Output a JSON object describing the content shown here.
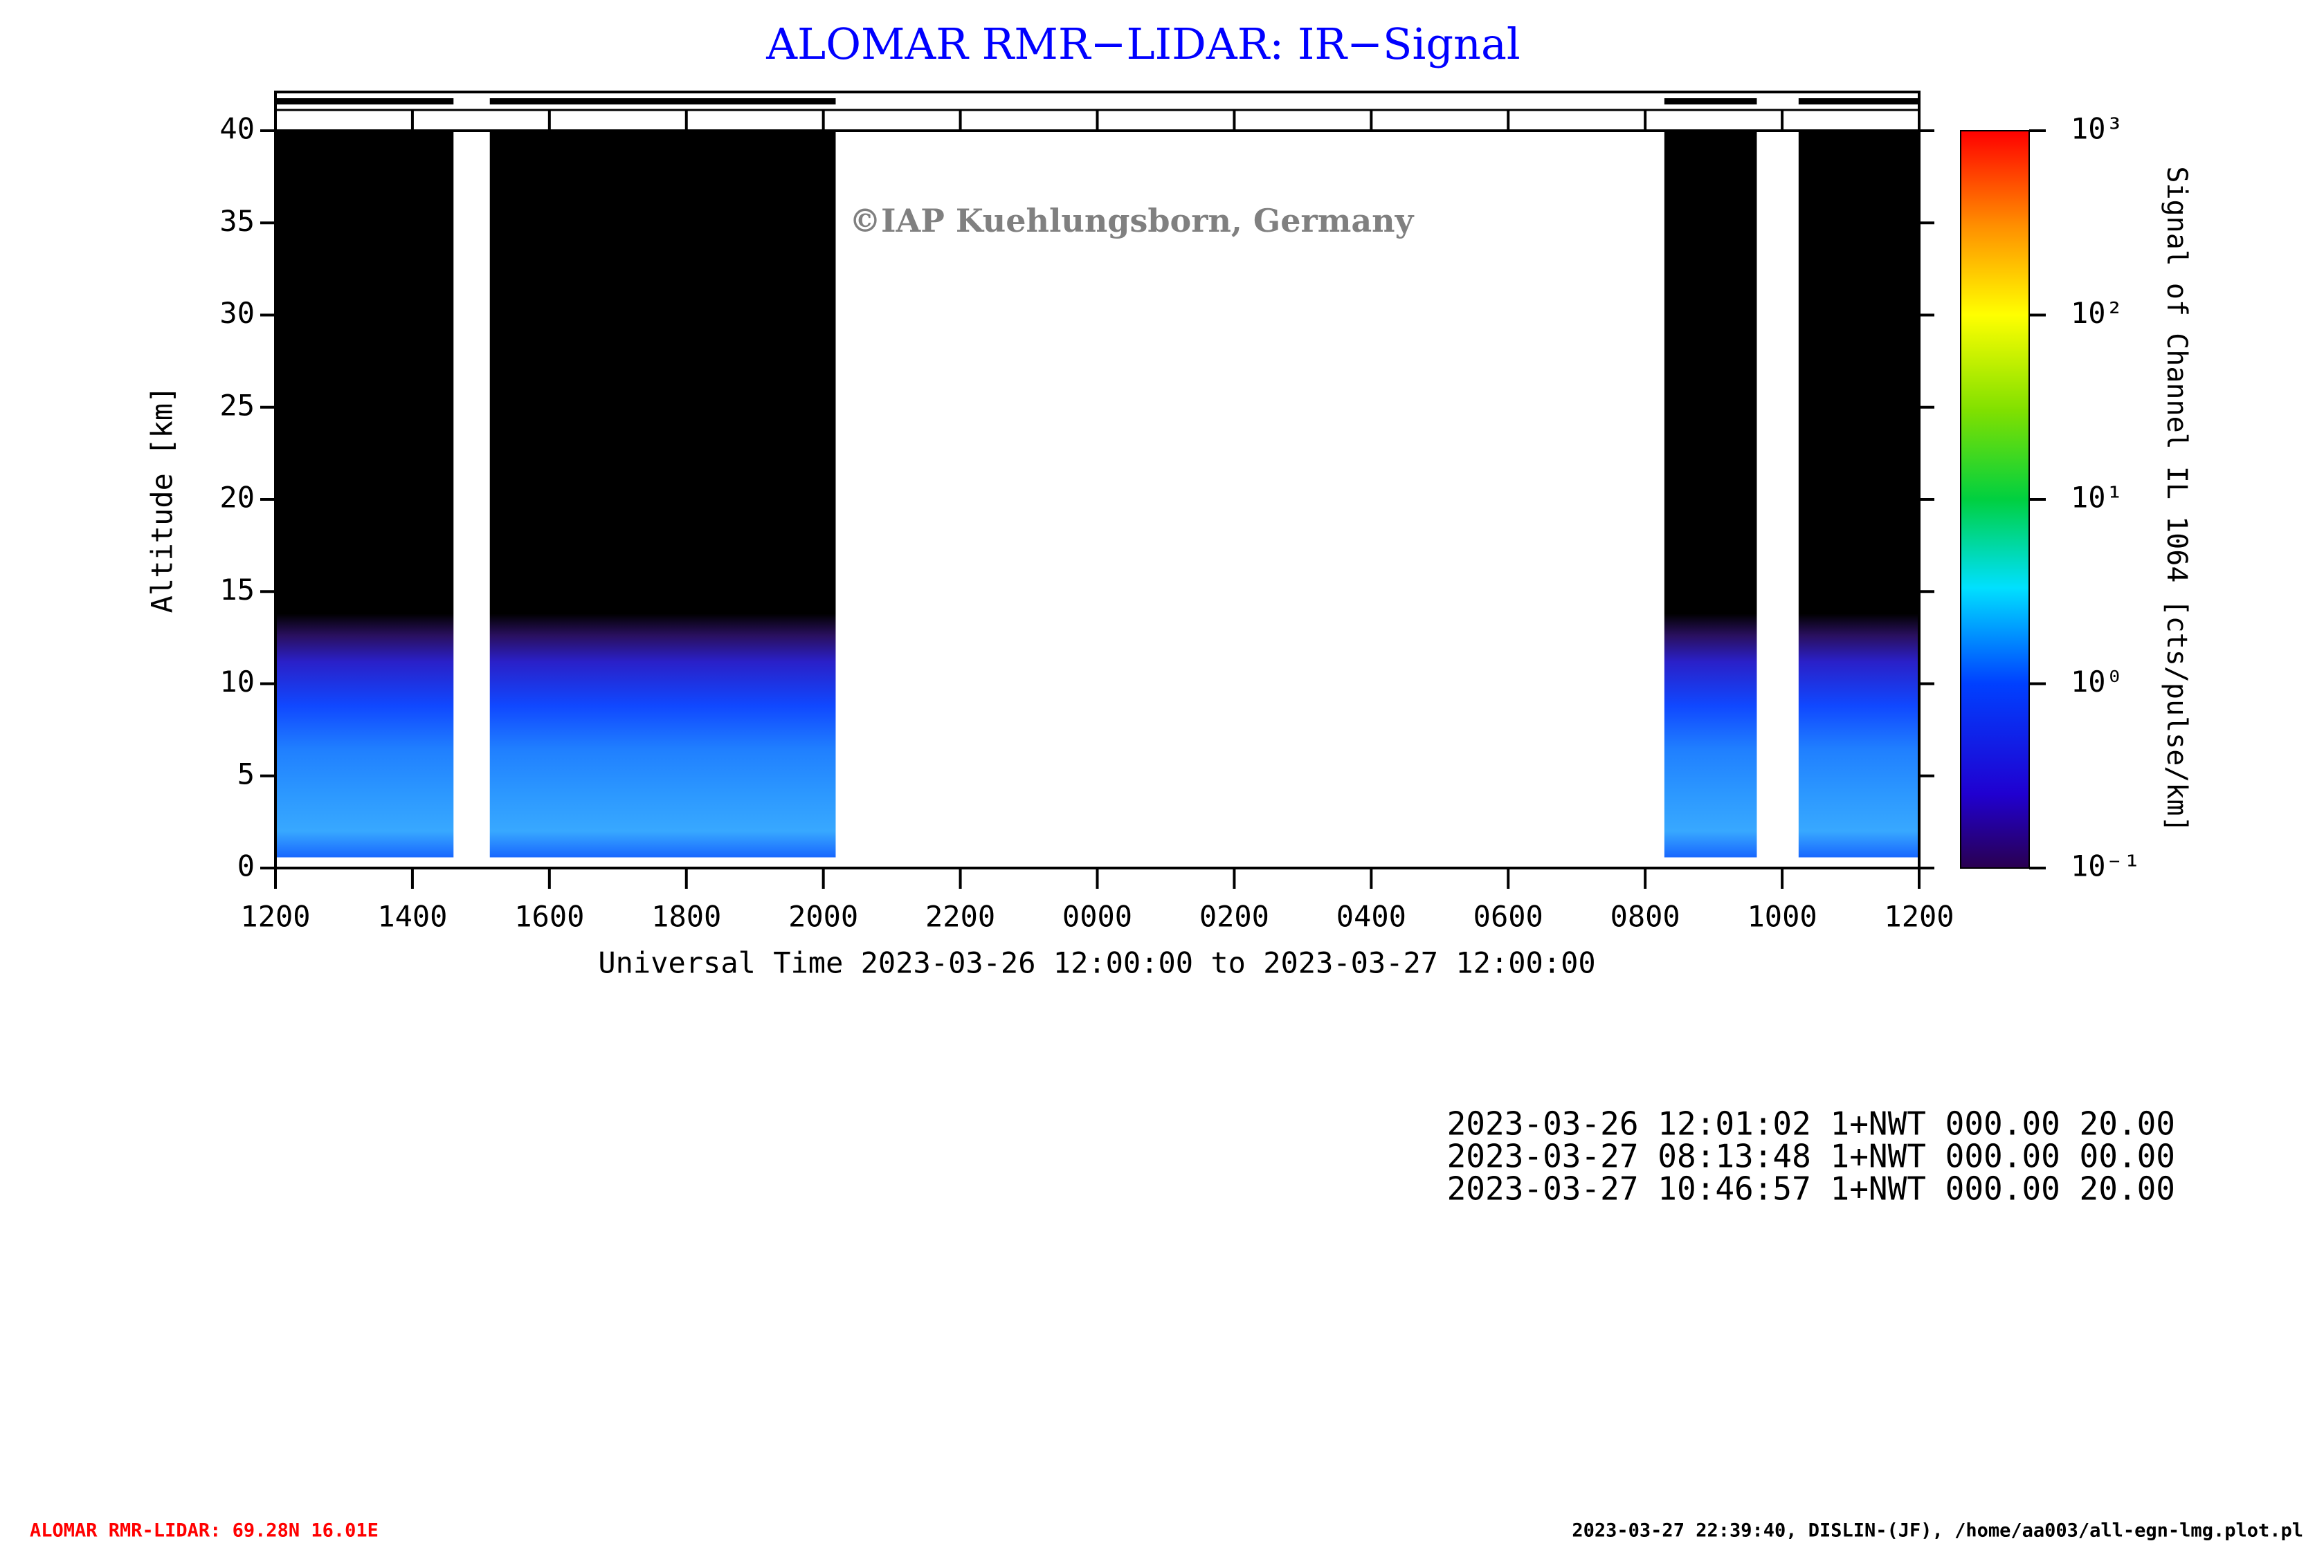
{
  "chart_data": {
    "type": "lidar-heatmap",
    "title": "ALOMAR RMR−LIDAR: IR−Signal",
    "watermark": "©IAP Kuehlungsborn, Germany",
    "x_label": "Universal Time 2023-03-26 12:00:00 to 2023-03-27 12:00:00",
    "y_label": "Altitude [km]",
    "colorbar_label": "Signal of Channel IL 1064 [cts/pulse/km]",
    "xlim": [
      0,
      24
    ],
    "xticks": [
      {
        "value": 0,
        "label": "1200"
      },
      {
        "value": 2,
        "label": "1400"
      },
      {
        "value": 4,
        "label": "1600"
      },
      {
        "value": 6,
        "label": "1800"
      },
      {
        "value": 8,
        "label": "2000"
      },
      {
        "value": 10,
        "label": "2200"
      },
      {
        "value": 12,
        "label": "0000"
      },
      {
        "value": 14,
        "label": "0200"
      },
      {
        "value": 16,
        "label": "0400"
      },
      {
        "value": 18,
        "label": "0600"
      },
      {
        "value": 20,
        "label": "0800"
      },
      {
        "value": 22,
        "label": "1000"
      },
      {
        "value": 24,
        "label": "1200"
      }
    ],
    "ylim": [
      0,
      40
    ],
    "yticks": [
      0,
      5,
      10,
      15,
      20,
      25,
      30,
      35,
      40
    ],
    "periods": [
      {
        "start": 0,
        "end": 2.6
      },
      {
        "start": 3.13,
        "end": 8.18
      },
      {
        "start": 20.28,
        "end": 21.63
      },
      {
        "start": 22.24,
        "end": 24
      }
    ],
    "clim": [
      0.1,
      1000
    ],
    "color_log_scale": true,
    "cticks": [
      {
        "value": 0.1,
        "label": "10⁻¹"
      },
      {
        "value": 1,
        "label": "10⁰"
      },
      {
        "value": 10,
        "label": "10¹"
      },
      {
        "value": 100,
        "label": "10²"
      },
      {
        "value": 1000,
        "label": "10³"
      }
    ]
  },
  "info_lines": [
    "2023-03-26 12:01:02 1+NWT 000.00 20.00",
    "2023-03-27 08:13:48 1+NWT 000.00 00.00",
    "2023-03-27 10:46:57 1+NWT 000.00 20.00"
  ],
  "footer": {
    "left": "ALOMAR RMR-LIDAR: 69.28N 16.01E",
    "right": "2023-03-27 22:39:40, DISLIN-(JF), /home/aa003/all-egn-lmg.plot.pl"
  }
}
